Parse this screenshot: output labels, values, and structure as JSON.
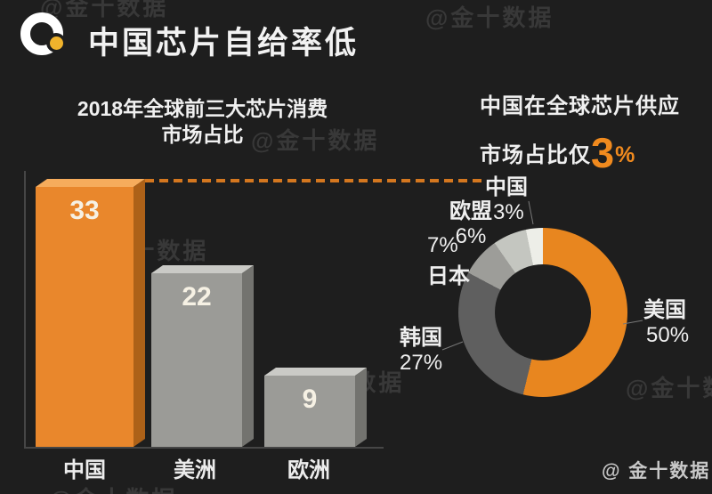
{
  "page": {
    "background": "#1e1e1e",
    "watermark_text": "@金十数据",
    "credit": "@ 金十数据"
  },
  "header": {
    "title": "中国芯片自给率低",
    "logo": {
      "icon": "jinshi-ring-logo",
      "ring_color": "#ffffff",
      "dot_color": "#f0b32c"
    }
  },
  "annotations": {
    "dashed_line_color": "#d4771f"
  },
  "chart_data": [
    {
      "type": "bar",
      "title_line1": "2018年全球前三大芯片消费",
      "title_line2": "市场占比",
      "categories": [
        "中国",
        "美洲",
        "欧洲"
      ],
      "values": [
        33,
        22,
        9
      ],
      "value_labels": [
        "33",
        "22",
        "9"
      ],
      "ylim": [
        0,
        35
      ],
      "grid": false,
      "bar_colors": [
        {
          "front": "#e9872c",
          "top": "#f6ac5c",
          "side": "#ad6118"
        },
        {
          "front": "#9b9b97",
          "top": "#cacac6",
          "side": "#73736f"
        },
        {
          "front": "#9b9b97",
          "top": "#cacac6",
          "side": "#73736f"
        }
      ]
    },
    {
      "type": "pie",
      "subtype": "donut",
      "title_line1": "中国在全球芯片供应",
      "title_line2_prefix": "市场占比仅",
      "highlight_value": "3",
      "highlight_unit": "%",
      "highlight_color": "#f08a1e",
      "legend_position": "around-slices",
      "series": [
        {
          "name": "美国",
          "value": 50,
          "label": "50%",
          "color": "#e8861f"
        },
        {
          "name": "韩国",
          "value": 27,
          "label": "27%",
          "color": "#5f5f5f"
        },
        {
          "name": "日本",
          "value": 7,
          "label": "7%",
          "color": "#9d9d99"
        },
        {
          "name": "欧盟",
          "value": 6,
          "label": "6%",
          "color": "#c4c6c0"
        },
        {
          "name": "中国",
          "value": 3,
          "label": "3%",
          "color": "#edeee8"
        }
      ]
    }
  ]
}
